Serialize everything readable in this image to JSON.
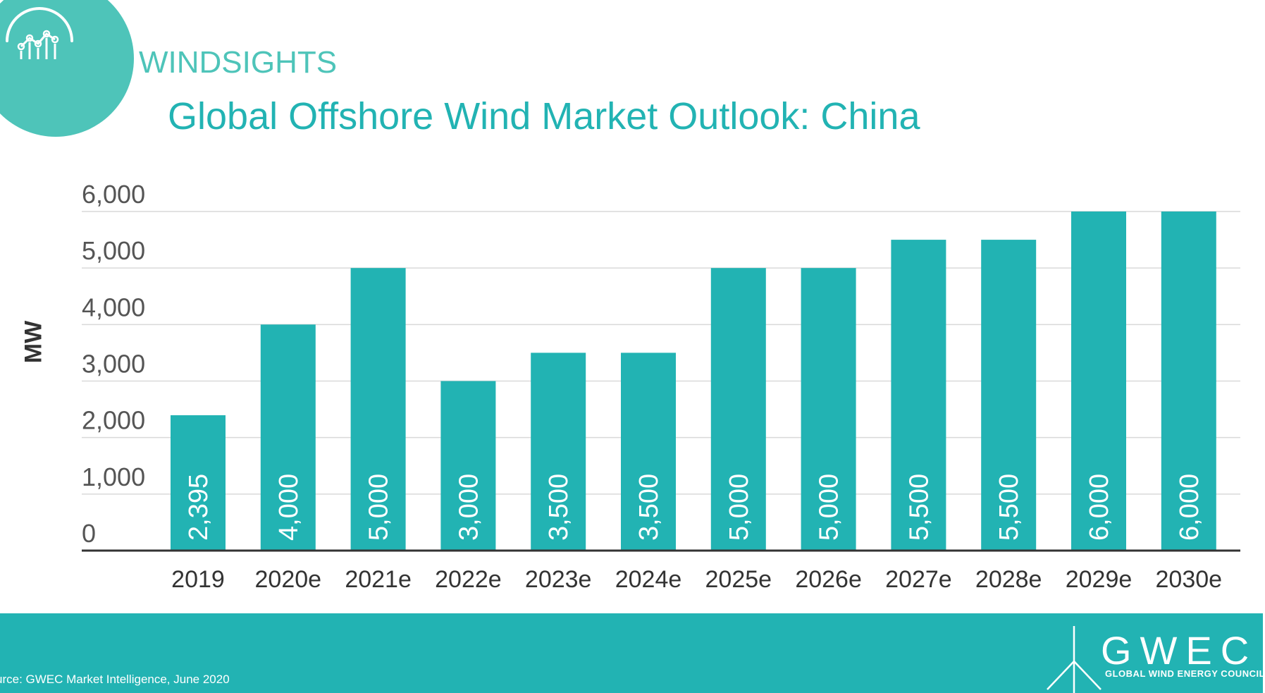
{
  "brand": {
    "name": "WINDSIGHTS",
    "icon": "windsights-chart-icon"
  },
  "colors": {
    "accent": "#22b3b3",
    "logo": "#4ec4b9",
    "bar": "#22b3b3",
    "grid": "#d9d9d9",
    "axis": "#333333"
  },
  "footer": {
    "source": "urce: GWEC Market Intelligence, June 2020",
    "org_name": "GWEC",
    "org_full": "GLOBAL WIND ENERGY COUNCIL",
    "org_icon": "wind-turbine-icon"
  },
  "chart_data": {
    "type": "bar",
    "title": "Global Offshore Wind Market Outlook: China",
    "xlabel": "",
    "ylabel": "MW",
    "categories": [
      "2019",
      "2020e",
      "2021e",
      "2022e",
      "2023e",
      "2024e",
      "2025e",
      "2026e",
      "2027e",
      "2028e",
      "2029e",
      "2030e"
    ],
    "values": [
      2395,
      4000,
      5000,
      3000,
      3500,
      3500,
      5000,
      5000,
      5500,
      5500,
      6000,
      6000
    ],
    "value_labels": [
      "2,395",
      "4,000",
      "5,000",
      "3,000",
      "3,500",
      "3,500",
      "5,000",
      "5,000",
      "5,500",
      "5,500",
      "6,000",
      "6,000"
    ],
    "ylim": [
      0,
      6000
    ],
    "yticks": [
      0,
      1000,
      2000,
      3000,
      4000,
      5000,
      6000
    ],
    "ytick_labels": [
      "0",
      "1,000",
      "2,000",
      "3,000",
      "4,000",
      "5,000",
      "6,000"
    ],
    "grid": true,
    "legend": "none"
  }
}
